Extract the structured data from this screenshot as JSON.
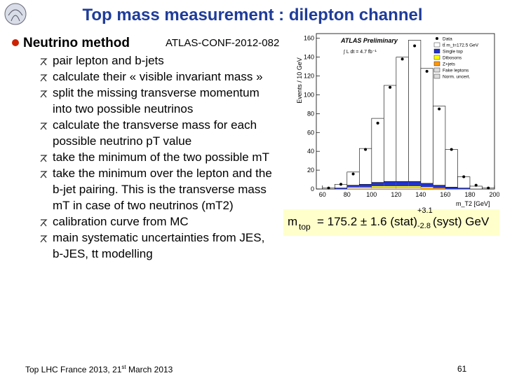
{
  "header": {
    "title": "Top mass measurement : dilepton channel"
  },
  "section": {
    "title": "Neutrino method",
    "reference": "ATLAS-CONF-2012-082"
  },
  "bullets": [
    [
      "pair lepton and b-jets"
    ],
    [
      "calculate their « visible invariant mass »"
    ],
    [
      "split the missing transverse momentum",
      "into two possible neutrinos"
    ],
    [
      "calculate the transverse mass for each",
      "possible neutrino pT value"
    ],
    [
      "take the minimum of the two possible mT"
    ],
    [
      "take the minimum over the lepton and the",
      "b-jet pairing. This is the transverse mass",
      "mT in case of two neutrinos (mT2)"
    ],
    [
      "calibration curve from MC"
    ],
    [
      "main systematic uncertainties from JES,",
      "b-JES, tt modelling"
    ]
  ],
  "result": {
    "symbol": "m",
    "subscript": "top",
    "value": "= 175.2 ± 1.6 (stat)",
    "upper": "+3.1",
    "lower": "-2.8",
    "unit": "(syst) GeV"
  },
  "footer": {
    "left": "Top LHC France 2013, 21",
    "left_sup": "st",
    "left_tail": " March 2013",
    "page": "61"
  },
  "chart_data": {
    "type": "histogram",
    "annotation": "ATLAS Preliminary",
    "luminosity": "∫ L dt = 4.7 fb⁻¹",
    "x_label": "m_T2 [GeV]",
    "y_label": "Events / 10 GeV",
    "bins": [
      60,
      70,
      80,
      90,
      100,
      110,
      120,
      130,
      140,
      150,
      160,
      170,
      180,
      190,
      200
    ],
    "xlim": [
      55,
      200
    ],
    "xticks": [
      60,
      80,
      100,
      120,
      140,
      160,
      180,
      200
    ],
    "ylim": [
      0,
      165
    ],
    "yticks": [
      0,
      20,
      40,
      60,
      80,
      100,
      120,
      140,
      160
    ],
    "stack": [
      {
        "name": "Fake leptons",
        "color": "#dddddd",
        "values": [
          0,
          0,
          1,
          1,
          1,
          1,
          1,
          1,
          0,
          0,
          0,
          0,
          0,
          0
        ]
      },
      {
        "name": "Z+jets",
        "color": "#ff9900",
        "values": [
          0,
          0,
          1,
          1,
          1,
          1,
          1,
          1,
          1,
          1,
          0,
          0,
          0,
          0
        ]
      },
      {
        "name": "Dibosons",
        "color": "#ffff00",
        "values": [
          0,
          0,
          0,
          0,
          1,
          1,
          1,
          1,
          1,
          0,
          0,
          0,
          0,
          0
        ]
      },
      {
        "name": "Single top",
        "color": "#2233cc",
        "values": [
          0,
          1,
          2,
          3,
          4,
          5,
          5,
          5,
          4,
          3,
          2,
          1,
          0,
          0
        ]
      },
      {
        "name": "tt̄ m_t=172.5 GeV",
        "color": "#ffffff",
        "values": [
          1,
          4,
          14,
          38,
          68,
          102,
          132,
          150,
          122,
          84,
          40,
          12,
          3,
          1
        ]
      }
    ],
    "data": {
      "name": "Data",
      "color": "#000000",
      "values": [
        1,
        5,
        16,
        42,
        70,
        108,
        138,
        152,
        125,
        85,
        42,
        13,
        4,
        1
      ]
    },
    "uncertainty_label": "Norm. uncert."
  }
}
